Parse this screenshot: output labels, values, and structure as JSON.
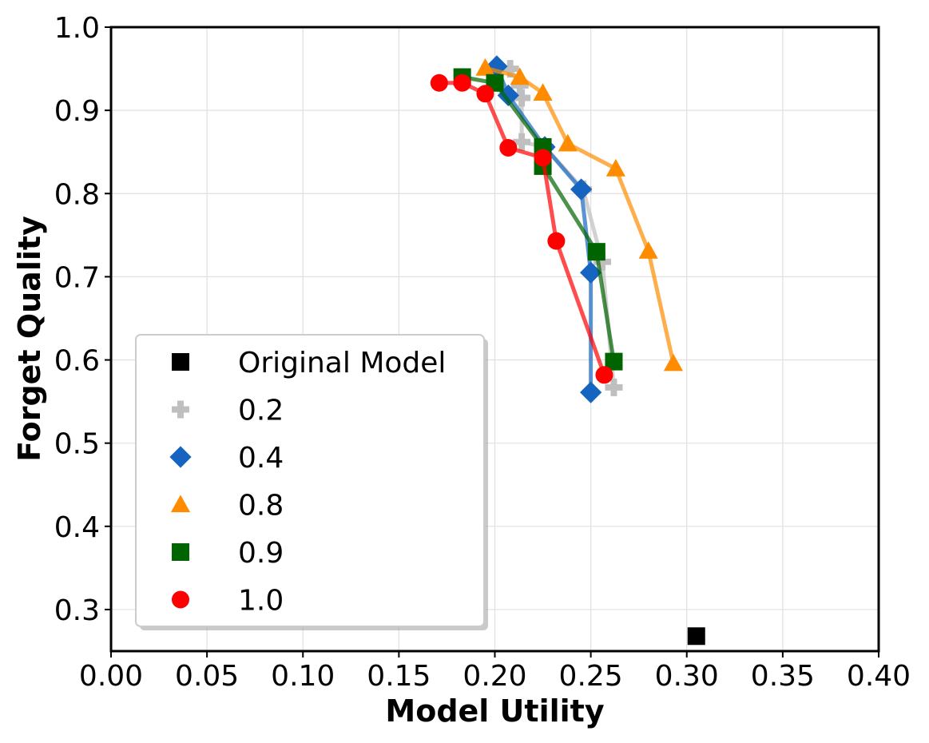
{
  "chart_data": {
    "type": "line",
    "title": "",
    "xlabel": "Model Utility",
    "ylabel": "Forget Quality",
    "xlim": [
      0.0,
      0.4
    ],
    "ylim": [
      0.25,
      1.0
    ],
    "grid": true,
    "legend_position": "lower-left",
    "x_ticks": [
      "0.00",
      "0.05",
      "0.10",
      "0.15",
      "0.20",
      "0.25",
      "0.30",
      "0.35",
      "0.40"
    ],
    "y_ticks": [
      "0.3",
      "0.4",
      "0.5",
      "0.6",
      "0.7",
      "0.8",
      "0.9",
      "1.0"
    ],
    "series": [
      {
        "name": "Original Model",
        "marker": "square",
        "color": "#000000",
        "line": false,
        "points": [
          [
            0.305,
            0.268
          ]
        ]
      },
      {
        "name": "0.2",
        "marker": "plus",
        "color": "#bfbfbf",
        "line": true,
        "points": [
          [
            0.208,
            0.95
          ],
          [
            0.213,
            0.93
          ],
          [
            0.214,
            0.915
          ],
          [
            0.214,
            0.862
          ],
          [
            0.226,
            0.856
          ],
          [
            0.246,
            0.805
          ],
          [
            0.256,
            0.718
          ],
          [
            0.262,
            0.567
          ]
        ]
      },
      {
        "name": "0.4",
        "marker": "diamond",
        "color": "#1565c0",
        "line": true,
        "points": [
          [
            0.201,
            0.953
          ],
          [
            0.207,
            0.918
          ],
          [
            0.226,
            0.856
          ],
          [
            0.245,
            0.805
          ],
          [
            0.25,
            0.705
          ],
          [
            0.25,
            0.561
          ]
        ]
      },
      {
        "name": "0.8",
        "marker": "triangle",
        "color": "#ff8c00",
        "line": true,
        "points": [
          [
            0.195,
            0.951
          ],
          [
            0.213,
            0.94
          ],
          [
            0.225,
            0.921
          ],
          [
            0.238,
            0.86
          ],
          [
            0.263,
            0.83
          ],
          [
            0.28,
            0.731
          ],
          [
            0.293,
            0.596
          ]
        ]
      },
      {
        "name": "0.9",
        "marker": "square",
        "color": "#006400",
        "line": true,
        "points": [
          [
            0.183,
            0.94
          ],
          [
            0.2,
            0.933
          ],
          [
            0.225,
            0.856
          ],
          [
            0.225,
            0.833
          ],
          [
            0.253,
            0.73
          ],
          [
            0.262,
            0.598
          ]
        ]
      },
      {
        "name": "1.0",
        "marker": "circle",
        "color": "#ff0000",
        "line": true,
        "points": [
          [
            0.171,
            0.933
          ],
          [
            0.183,
            0.933
          ],
          [
            0.195,
            0.92
          ],
          [
            0.207,
            0.855
          ],
          [
            0.225,
            0.843
          ],
          [
            0.232,
            0.743
          ],
          [
            0.257,
            0.582
          ]
        ]
      }
    ]
  }
}
